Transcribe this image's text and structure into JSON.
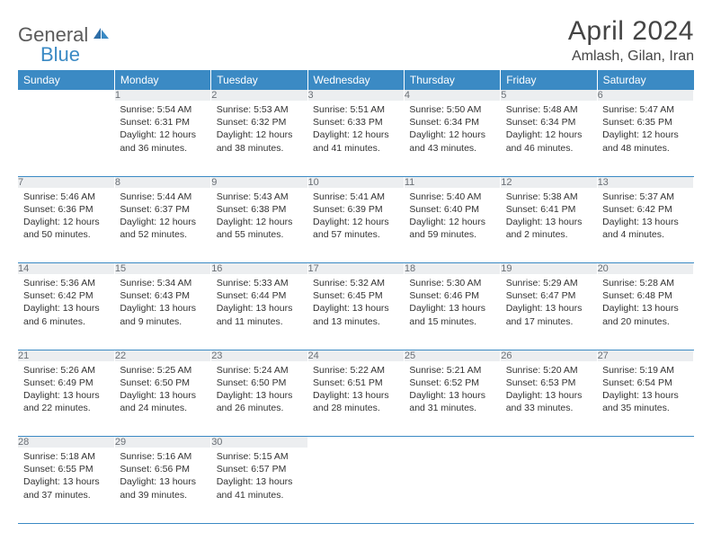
{
  "brand": {
    "word1": "General",
    "word2": "Blue"
  },
  "title": "April 2024",
  "location": "Amlash, Gilan, Iran",
  "colors": {
    "accent": "#3b8ac4",
    "header_text": "#ffffff",
    "daynum_bg": "#eceef0",
    "daynum_text": "#6a6f75",
    "body_text": "#333333"
  },
  "weekdays": [
    "Sunday",
    "Monday",
    "Tuesday",
    "Wednesday",
    "Thursday",
    "Friday",
    "Saturday"
  ],
  "weeks": [
    {
      "nums": [
        "",
        "1",
        "2",
        "3",
        "4",
        "5",
        "6"
      ],
      "cells": [
        {},
        {
          "sunrise": "Sunrise: 5:54 AM",
          "sunset": "Sunset: 6:31 PM",
          "day1": "Daylight: 12 hours",
          "day2": "and 36 minutes."
        },
        {
          "sunrise": "Sunrise: 5:53 AM",
          "sunset": "Sunset: 6:32 PM",
          "day1": "Daylight: 12 hours",
          "day2": "and 38 minutes."
        },
        {
          "sunrise": "Sunrise: 5:51 AM",
          "sunset": "Sunset: 6:33 PM",
          "day1": "Daylight: 12 hours",
          "day2": "and 41 minutes."
        },
        {
          "sunrise": "Sunrise: 5:50 AM",
          "sunset": "Sunset: 6:34 PM",
          "day1": "Daylight: 12 hours",
          "day2": "and 43 minutes."
        },
        {
          "sunrise": "Sunrise: 5:48 AM",
          "sunset": "Sunset: 6:34 PM",
          "day1": "Daylight: 12 hours",
          "day2": "and 46 minutes."
        },
        {
          "sunrise": "Sunrise: 5:47 AM",
          "sunset": "Sunset: 6:35 PM",
          "day1": "Daylight: 12 hours",
          "day2": "and 48 minutes."
        }
      ]
    },
    {
      "nums": [
        "7",
        "8",
        "9",
        "10",
        "11",
        "12",
        "13"
      ],
      "cells": [
        {
          "sunrise": "Sunrise: 5:46 AM",
          "sunset": "Sunset: 6:36 PM",
          "day1": "Daylight: 12 hours",
          "day2": "and 50 minutes."
        },
        {
          "sunrise": "Sunrise: 5:44 AM",
          "sunset": "Sunset: 6:37 PM",
          "day1": "Daylight: 12 hours",
          "day2": "and 52 minutes."
        },
        {
          "sunrise": "Sunrise: 5:43 AM",
          "sunset": "Sunset: 6:38 PM",
          "day1": "Daylight: 12 hours",
          "day2": "and 55 minutes."
        },
        {
          "sunrise": "Sunrise: 5:41 AM",
          "sunset": "Sunset: 6:39 PM",
          "day1": "Daylight: 12 hours",
          "day2": "and 57 minutes."
        },
        {
          "sunrise": "Sunrise: 5:40 AM",
          "sunset": "Sunset: 6:40 PM",
          "day1": "Daylight: 12 hours",
          "day2": "and 59 minutes."
        },
        {
          "sunrise": "Sunrise: 5:38 AM",
          "sunset": "Sunset: 6:41 PM",
          "day1": "Daylight: 13 hours",
          "day2": "and 2 minutes."
        },
        {
          "sunrise": "Sunrise: 5:37 AM",
          "sunset": "Sunset: 6:42 PM",
          "day1": "Daylight: 13 hours",
          "day2": "and 4 minutes."
        }
      ]
    },
    {
      "nums": [
        "14",
        "15",
        "16",
        "17",
        "18",
        "19",
        "20"
      ],
      "cells": [
        {
          "sunrise": "Sunrise: 5:36 AM",
          "sunset": "Sunset: 6:42 PM",
          "day1": "Daylight: 13 hours",
          "day2": "and 6 minutes."
        },
        {
          "sunrise": "Sunrise: 5:34 AM",
          "sunset": "Sunset: 6:43 PM",
          "day1": "Daylight: 13 hours",
          "day2": "and 9 minutes."
        },
        {
          "sunrise": "Sunrise: 5:33 AM",
          "sunset": "Sunset: 6:44 PM",
          "day1": "Daylight: 13 hours",
          "day2": "and 11 minutes."
        },
        {
          "sunrise": "Sunrise: 5:32 AM",
          "sunset": "Sunset: 6:45 PM",
          "day1": "Daylight: 13 hours",
          "day2": "and 13 minutes."
        },
        {
          "sunrise": "Sunrise: 5:30 AM",
          "sunset": "Sunset: 6:46 PM",
          "day1": "Daylight: 13 hours",
          "day2": "and 15 minutes."
        },
        {
          "sunrise": "Sunrise: 5:29 AM",
          "sunset": "Sunset: 6:47 PM",
          "day1": "Daylight: 13 hours",
          "day2": "and 17 minutes."
        },
        {
          "sunrise": "Sunrise: 5:28 AM",
          "sunset": "Sunset: 6:48 PM",
          "day1": "Daylight: 13 hours",
          "day2": "and 20 minutes."
        }
      ]
    },
    {
      "nums": [
        "21",
        "22",
        "23",
        "24",
        "25",
        "26",
        "27"
      ],
      "cells": [
        {
          "sunrise": "Sunrise: 5:26 AM",
          "sunset": "Sunset: 6:49 PM",
          "day1": "Daylight: 13 hours",
          "day2": "and 22 minutes."
        },
        {
          "sunrise": "Sunrise: 5:25 AM",
          "sunset": "Sunset: 6:50 PM",
          "day1": "Daylight: 13 hours",
          "day2": "and 24 minutes."
        },
        {
          "sunrise": "Sunrise: 5:24 AM",
          "sunset": "Sunset: 6:50 PM",
          "day1": "Daylight: 13 hours",
          "day2": "and 26 minutes."
        },
        {
          "sunrise": "Sunrise: 5:22 AM",
          "sunset": "Sunset: 6:51 PM",
          "day1": "Daylight: 13 hours",
          "day2": "and 28 minutes."
        },
        {
          "sunrise": "Sunrise: 5:21 AM",
          "sunset": "Sunset: 6:52 PM",
          "day1": "Daylight: 13 hours",
          "day2": "and 31 minutes."
        },
        {
          "sunrise": "Sunrise: 5:20 AM",
          "sunset": "Sunset: 6:53 PM",
          "day1": "Daylight: 13 hours",
          "day2": "and 33 minutes."
        },
        {
          "sunrise": "Sunrise: 5:19 AM",
          "sunset": "Sunset: 6:54 PM",
          "day1": "Daylight: 13 hours",
          "day2": "and 35 minutes."
        }
      ]
    },
    {
      "nums": [
        "28",
        "29",
        "30",
        "",
        "",
        "",
        ""
      ],
      "cells": [
        {
          "sunrise": "Sunrise: 5:18 AM",
          "sunset": "Sunset: 6:55 PM",
          "day1": "Daylight: 13 hours",
          "day2": "and 37 minutes."
        },
        {
          "sunrise": "Sunrise: 5:16 AM",
          "sunset": "Sunset: 6:56 PM",
          "day1": "Daylight: 13 hours",
          "day2": "and 39 minutes."
        },
        {
          "sunrise": "Sunrise: 5:15 AM",
          "sunset": "Sunset: 6:57 PM",
          "day1": "Daylight: 13 hours",
          "day2": "and 41 minutes."
        },
        {},
        {},
        {},
        {}
      ]
    }
  ]
}
